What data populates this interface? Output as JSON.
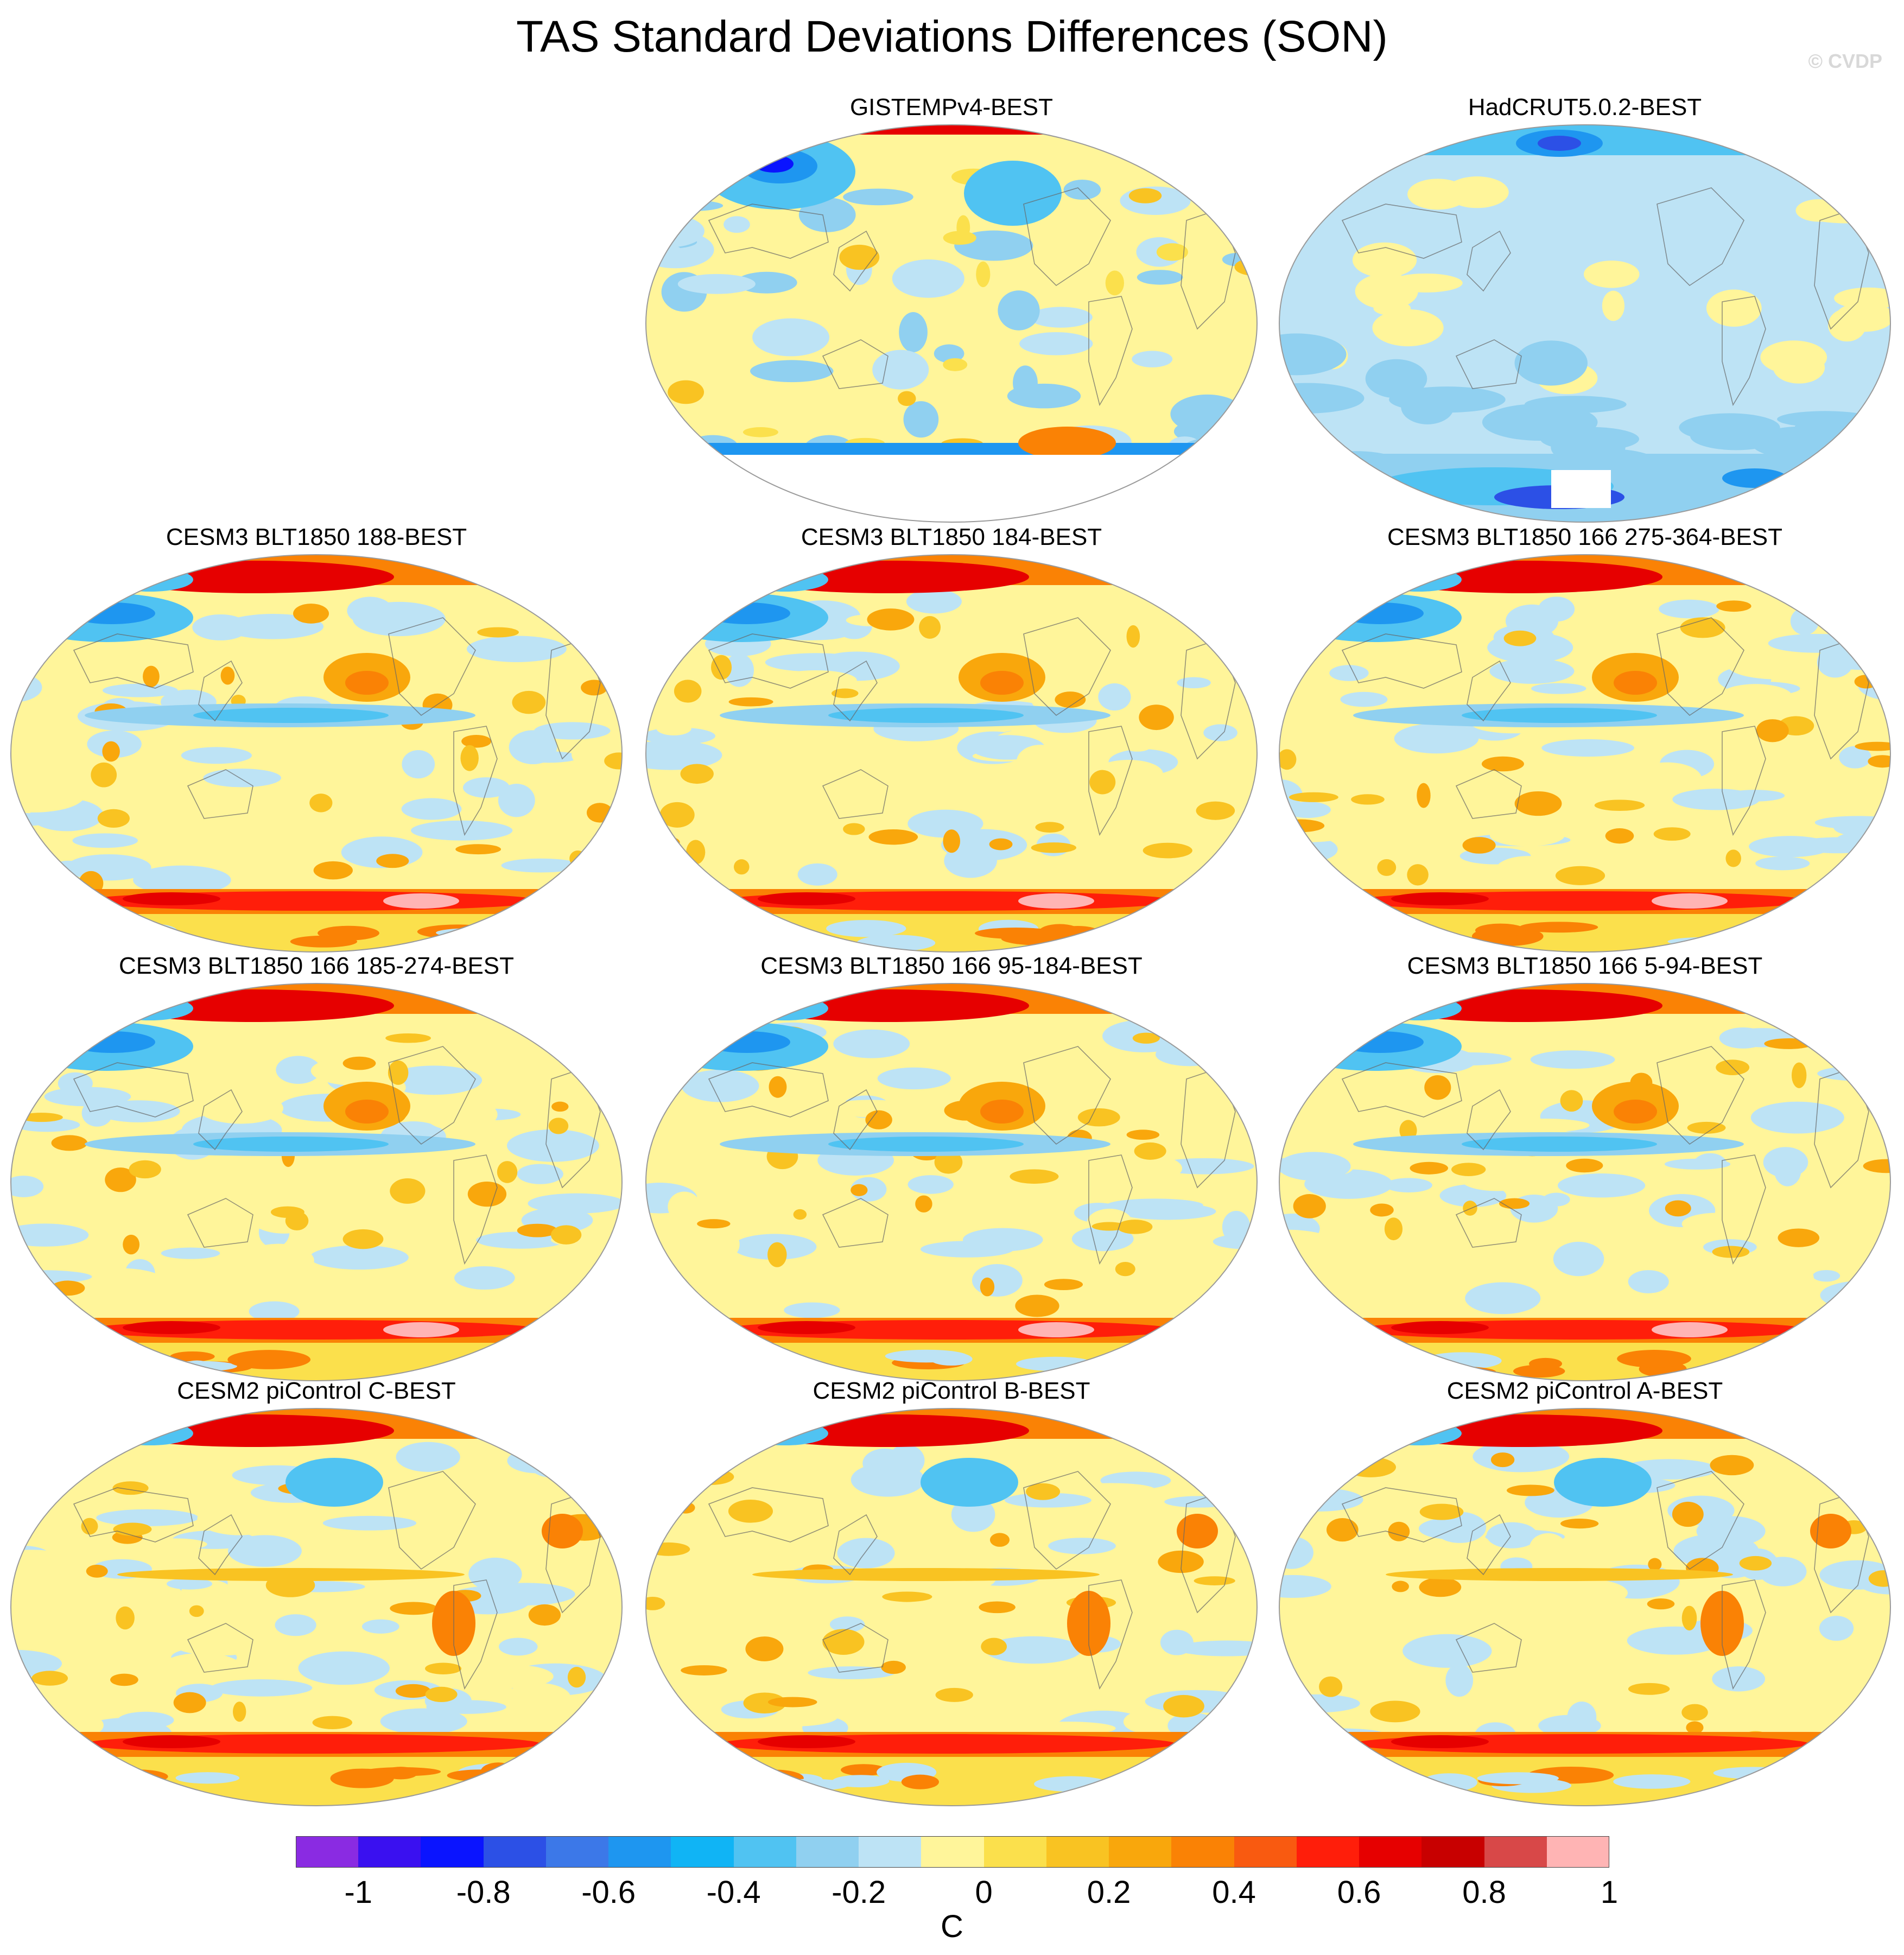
{
  "figure": {
    "title": "TAS Standard Deviations Differences (SON)",
    "credit": "© CVDP"
  },
  "panels": [
    {
      "title": "GISTEMPv4-BEST",
      "style": "gistemp"
    },
    {
      "title": "HadCRUT5.0.2-BEST",
      "style": "hadcrut"
    },
    {
      "title": "CESM3 BLT1850 188-BEST",
      "style": "cesm3"
    },
    {
      "title": "CESM3 BLT1850 184-BEST",
      "style": "cesm3"
    },
    {
      "title": "CESM3 BLT1850 166 275-364-BEST",
      "style": "cesm3"
    },
    {
      "title": "CESM3 BLT1850 166 185-274-BEST",
      "style": "cesm3"
    },
    {
      "title": "CESM3 BLT1850 166 95-184-BEST",
      "style": "cesm3"
    },
    {
      "title": "CESM3 BLT1850 166 5-94-BEST",
      "style": "cesm3"
    },
    {
      "title": "CESM2 piControl C-BEST",
      "style": "cesm2"
    },
    {
      "title": "CESM2 piControl B-BEST",
      "style": "cesm2"
    },
    {
      "title": "CESM2 piControl A-BEST",
      "style": "cesm2"
    }
  ],
  "colorbar": {
    "unit": "C",
    "labels": [
      "-1",
      "-0.8",
      "-0.6",
      "-0.4",
      "-0.2",
      "0",
      "0.2",
      "0.4",
      "0.6",
      "0.8",
      "1"
    ],
    "colors": [
      "#8a2be2",
      "#3a10f0",
      "#0a14ff",
      "#2c50e6",
      "#3c78e8",
      "#1e96f0",
      "#10b4f5",
      "#50c3f2",
      "#90d0f0",
      "#bde3f5",
      "#fff59a",
      "#fbe04c",
      "#f9c322",
      "#f9a70c",
      "#fa8205",
      "#f95a10",
      "#ff1e0a",
      "#e60000",
      "#c80000",
      "#d84848",
      "#ffb4b4"
    ]
  }
}
